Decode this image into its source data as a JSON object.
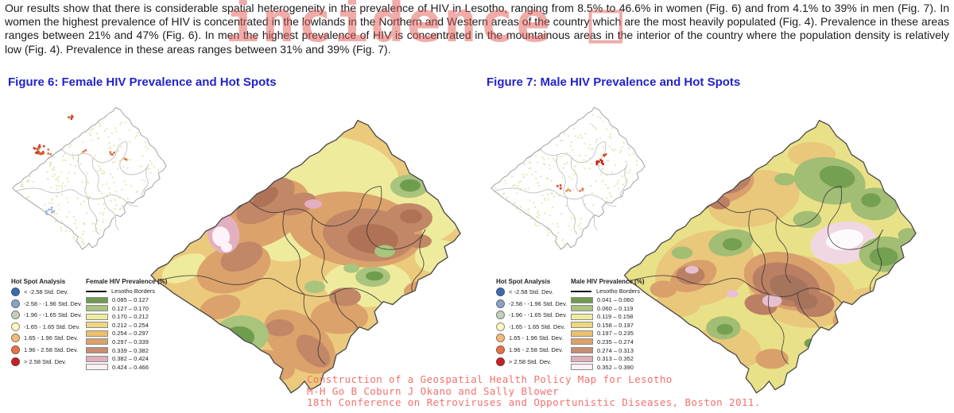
{
  "paragraph": "Our results show that there is considerable spatial heterogeneity in the prevalence of HIV in Lesotho, ranging from 8.5% to 46.6% in women (Fig. 6) and from 4.1% to 39% in men (Fig. 7). In women the highest prevalence of HIV is concentrated in the lowlands in the Northern and Western areas of the country which are the most heavily populated (Fig. 4). Prevalence in these areas ranges between 21% and 47% (Fig. 6). In men the highest prevalence of HIV is concentrated in the mountainous areas in the interior of the country where the population density is relatively low (Fig. 4). Prevalence in these areas ranges between 31% and 39% (Fig. 7).",
  "watermark": "incidence □",
  "hotspot": {
    "title": "Hot Spot Analysis",
    "items": [
      {
        "label": "< -2.58 Std. Dev.",
        "color": "#3a6db0"
      },
      {
        "label": "-2.58 - -1.96 Std. Dev.",
        "color": "#8aa2c6"
      },
      {
        "label": "-1.96 - -1.65 Std. Dev.",
        "color": "#c5cfbd"
      },
      {
        "label": "-1.65 - 1.65 Std. Dev.",
        "color": "#fdf7c4"
      },
      {
        "label": "1.65 - 1.96 Std. Dev.",
        "color": "#f6b97c"
      },
      {
        "label": "1.96 - 2.58 Std. Dev.",
        "color": "#e8714a"
      },
      {
        "label": "> 2.58 Std. Dev.",
        "color": "#c62026"
      }
    ]
  },
  "borders_label": "Lesotho Borders",
  "figures": [
    {
      "title": "Figure 6: Female HIV Prevalence and Hot Spots",
      "prevalence_title": "Female HIV Prevalence (%)",
      "prevalence_items": [
        {
          "label": "0.085 – 0.127",
          "color": "#6f9d50"
        },
        {
          "label": "0.127 – 0.170",
          "color": "#a9c47d"
        },
        {
          "label": "0.170 – 0.212",
          "color": "#eeec9e"
        },
        {
          "label": "0.212 – 0.254",
          "color": "#eed77f"
        },
        {
          "label": "0.254 – 0.297",
          "color": "#ecc16c"
        },
        {
          "label": "0.297 – 0.339",
          "color": "#dda36a"
        },
        {
          "label": "0.339 – 0.382",
          "color": "#c58d72"
        },
        {
          "label": "0.382 – 0.424",
          "color": "#e0aebd"
        },
        {
          "label": "0.424 – 0.466",
          "color": "#fdeff6"
        }
      ]
    },
    {
      "title": "Figure 7: Male HIV Prevalence and Hot Spots",
      "prevalence_title": "Male HIV Prevalence (%)",
      "prevalence_items": [
        {
          "label": "0.041 – 0.060",
          "color": "#6f9d50"
        },
        {
          "label": "0.060 – 0.119",
          "color": "#a9c47d"
        },
        {
          "label": "0.119 – 0.158",
          "color": "#eeec9e"
        },
        {
          "label": "0.158 – 0.197",
          "color": "#eed77f"
        },
        {
          "label": "0.197 – 0.235",
          "color": "#ecc16c"
        },
        {
          "label": "0.235 – 0.274",
          "color": "#dda36a"
        },
        {
          "label": "0.274 – 0.313",
          "color": "#c58d72"
        },
        {
          "label": "0.313 – 0.352",
          "color": "#e0aebd"
        },
        {
          "label": "0.352 – 0.390",
          "color": "#fdeff6"
        }
      ]
    }
  ],
  "citation": {
    "lines": [
      "Construction of a Geospatial Health Policy Map for Lesotho",
      "M-H Go B Coburn J Okano and Sally Blower",
      "18th Conference on Retroviruses and Opportunistic Diseases, Boston 2011."
    ]
  },
  "colors": {
    "figure_title": "#2323cb",
    "watermark": "#de5a54",
    "citation": "#f2716d",
    "map_border": "#4d4d4d"
  }
}
